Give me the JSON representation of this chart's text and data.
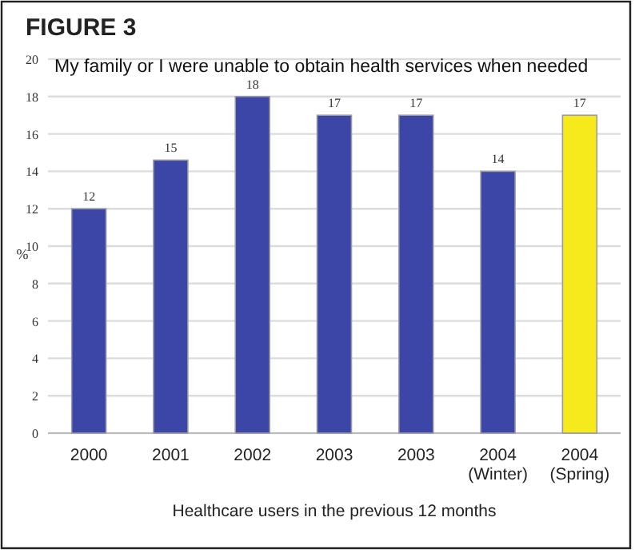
{
  "chart_data": {
    "type": "bar",
    "title": "FIGURE 3",
    "subtitle": "My family or I were unable to obtain health services when needed",
    "xlabel": "Healthcare users in the previous 12 months",
    "ylabel": "%",
    "categories": [
      "2000",
      "2001",
      "2002",
      "2003",
      "2003",
      "2004\n(Winter)",
      "2004\n(Spring)"
    ],
    "values": [
      12,
      14.6,
      18,
      17,
      17,
      14,
      17
    ],
    "value_labels": [
      "12",
      "15",
      "18",
      "17",
      "17",
      "14",
      "17"
    ],
    "colors": [
      "#3b46a6",
      "#3b46a6",
      "#3b46a6",
      "#3b46a6",
      "#3b46a6",
      "#3b46a6",
      "#f7ea1c"
    ],
    "ylim": [
      0,
      20
    ],
    "yticks": [
      0,
      2,
      4,
      6,
      8,
      10,
      12,
      14,
      16,
      18,
      20
    ],
    "grid": "y"
  }
}
